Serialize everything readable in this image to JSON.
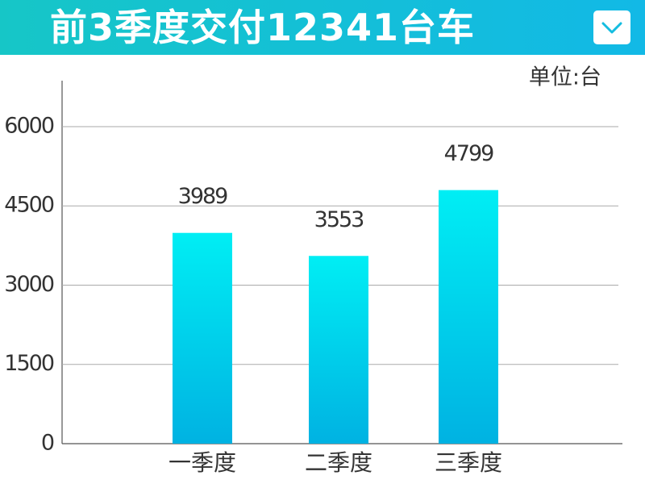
{
  "chart_data": {
    "type": "bar",
    "title": "前3季度交付12341台车",
    "unit_label": "单位:台",
    "categories": [
      "一季度",
      "二季度",
      "三季度"
    ],
    "values": [
      3989,
      3553,
      4799
    ],
    "color": [
      "#00eef4",
      "#00b2e2"
    ],
    "ylim": [
      0,
      6870
    ],
    "yticks": [
      0,
      1500,
      3000,
      4500,
      6000
    ],
    "grid": true
  }
}
